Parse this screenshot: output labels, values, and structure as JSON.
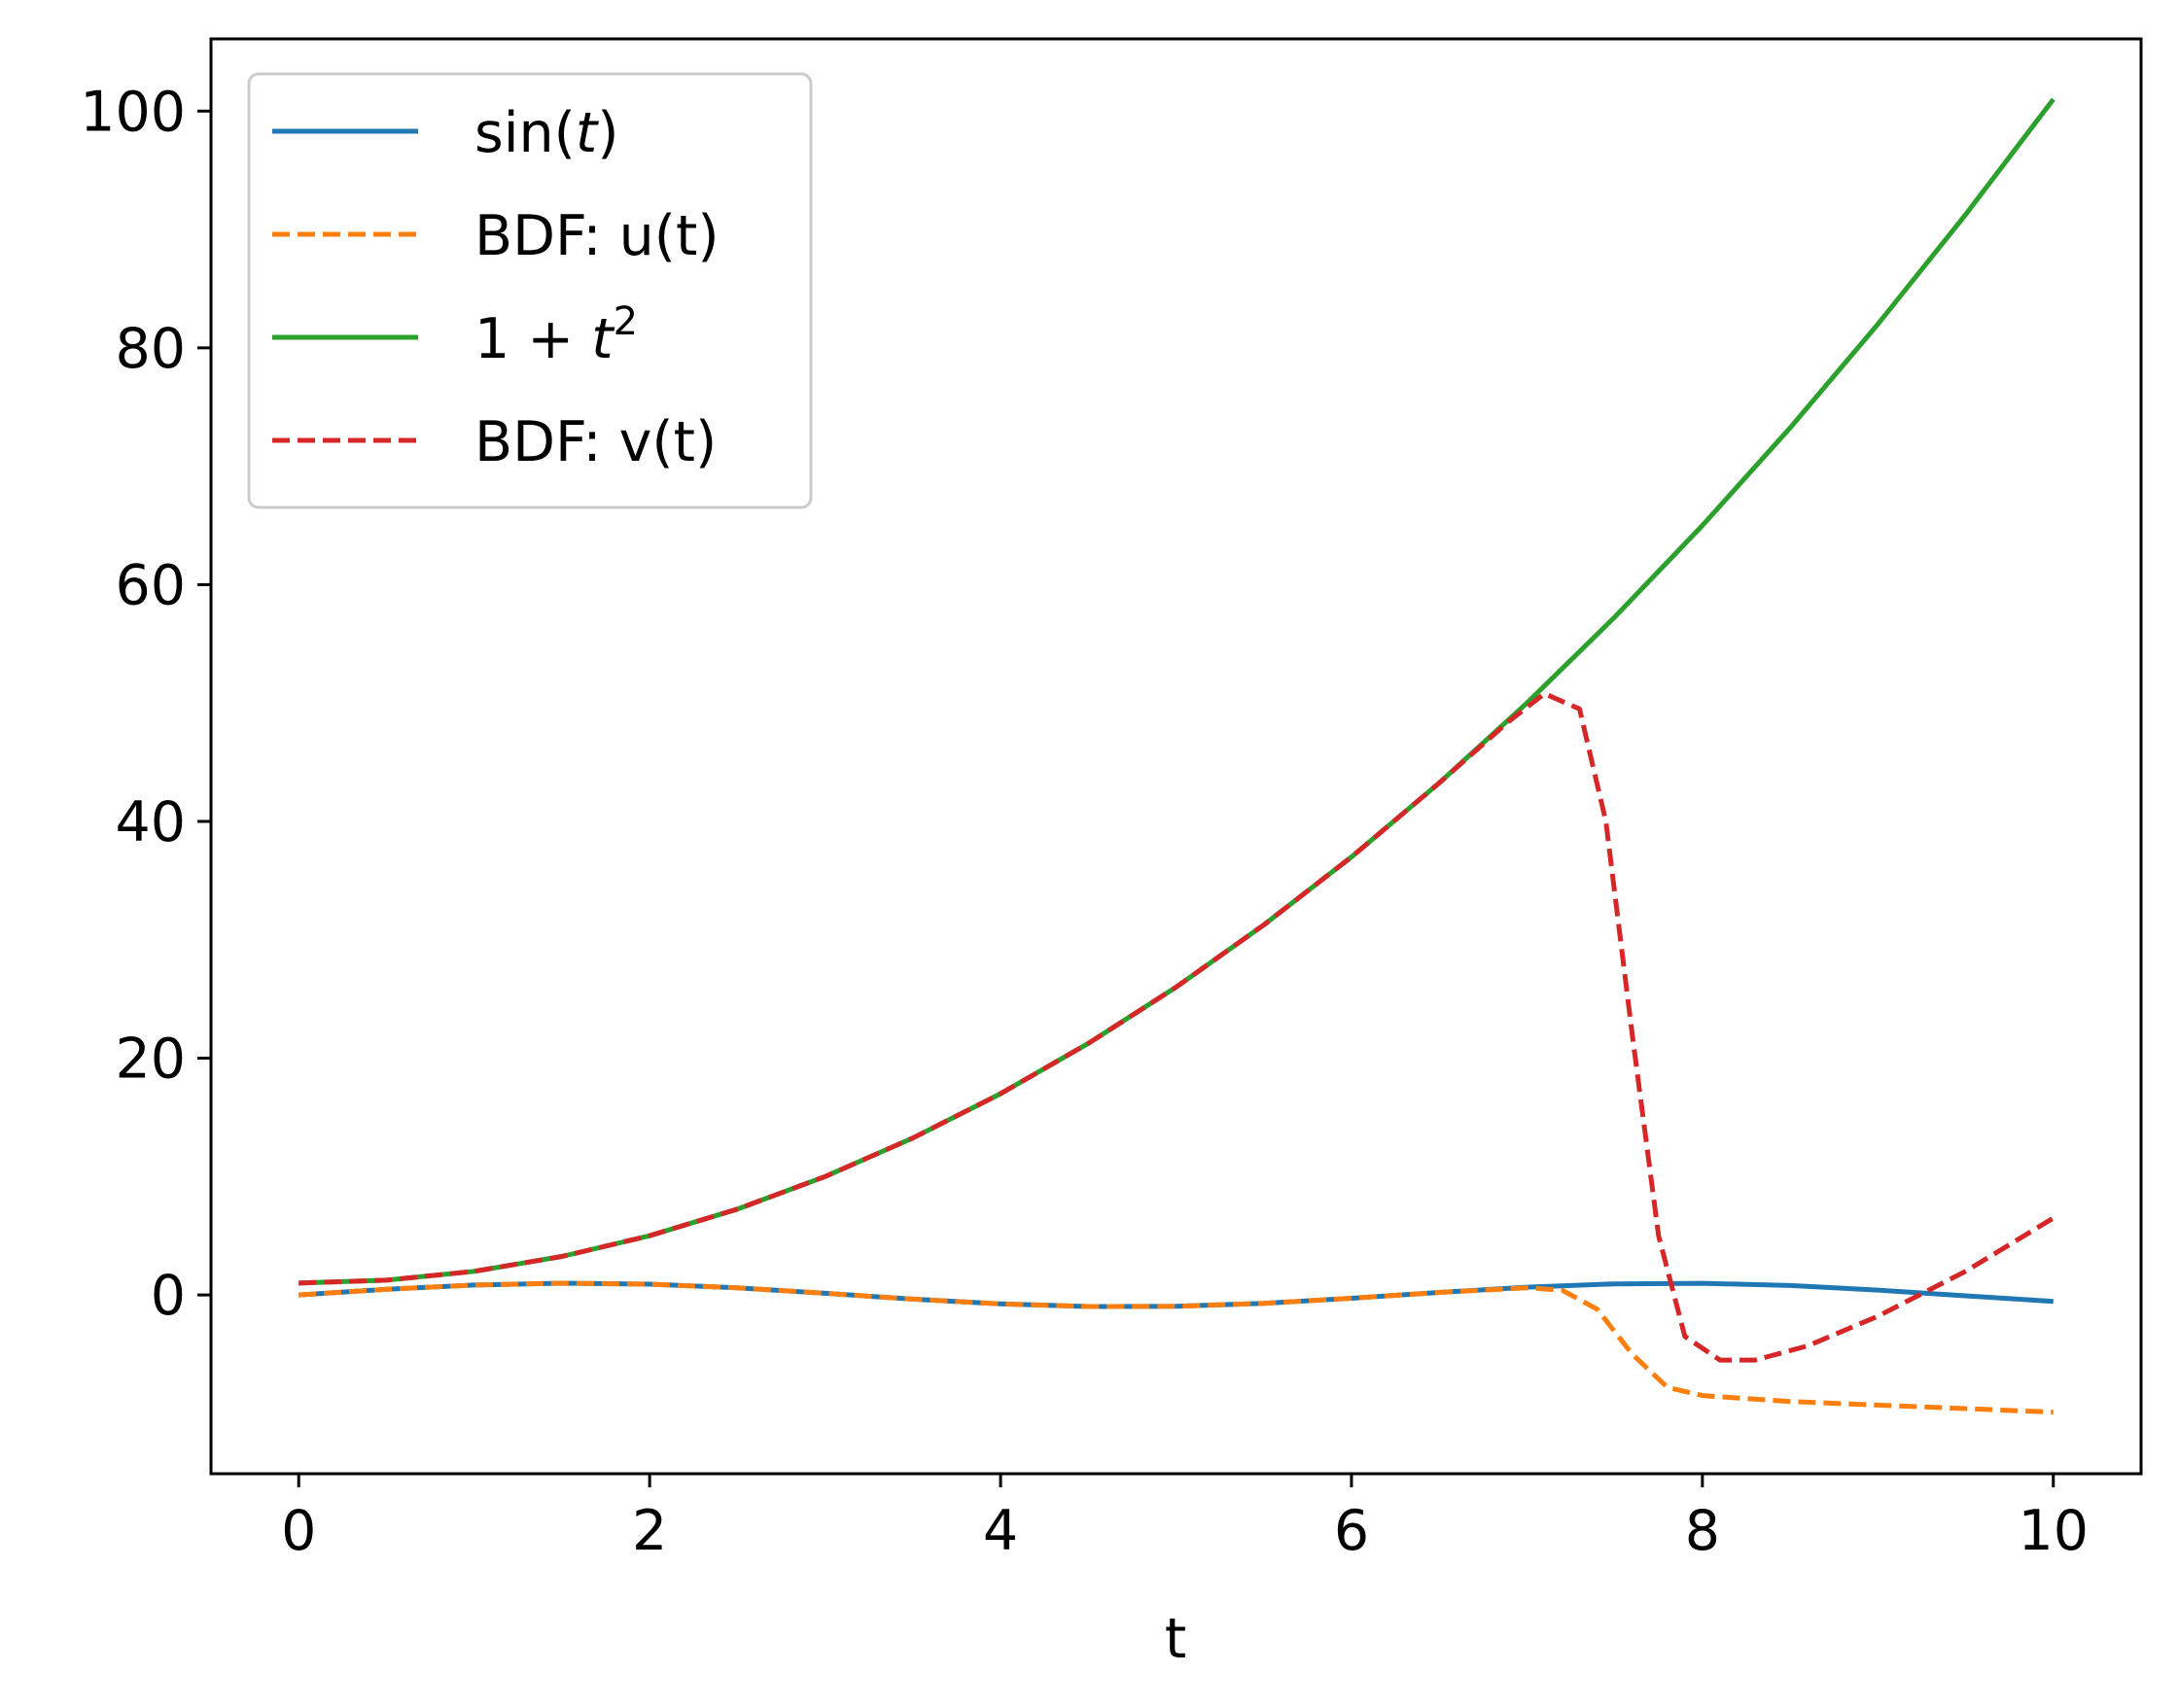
{
  "chart_data": {
    "type": "line",
    "title": "",
    "xlabel": "t",
    "ylabel": "",
    "xlim": [
      -0.5,
      10.5
    ],
    "ylim": [
      -15.1,
      106.1
    ],
    "xticks": [
      0,
      2,
      4,
      6,
      8,
      10
    ],
    "xtick_labels": [
      "0",
      "2",
      "4",
      "6",
      "8",
      "10"
    ],
    "yticks": [
      0,
      20,
      40,
      60,
      80,
      100
    ],
    "ytick_labels": [
      "0",
      "20",
      "40",
      "60",
      "80",
      "100"
    ],
    "grid": false,
    "legend_position": "top-left",
    "series": [
      {
        "name": "sin(t)",
        "legend_main": "sin(",
        "legend_italic": "t",
        "legend_sup": "",
        "legend_tail": ")",
        "color": "#1f77b4",
        "style": "solid",
        "x": [
          0,
          0.5,
          1,
          1.5,
          2,
          2.5,
          3,
          3.5,
          4,
          4.5,
          5,
          5.5,
          6,
          6.5,
          7,
          7.5,
          8,
          8.5,
          9,
          9.5,
          10
        ],
        "y": [
          0,
          0.479,
          0.841,
          0.997,
          0.909,
          0.598,
          0.141,
          -0.351,
          -0.757,
          -0.978,
          -0.959,
          -0.706,
          -0.279,
          0.215,
          0.657,
          0.938,
          0.989,
          0.798,
          0.412,
          -0.075,
          -0.544
        ]
      },
      {
        "name": "BDF: u(t)",
        "legend_main": "BDF: u(t)",
        "legend_italic": "",
        "legend_sup": "",
        "legend_tail": "",
        "color": "#ff7f0e",
        "style": "dashed",
        "x": [
          0,
          0.5,
          1,
          1.5,
          2,
          2.5,
          3,
          3.5,
          4,
          4.5,
          5,
          5.5,
          6,
          6.5,
          7,
          7.2,
          7.4,
          7.6,
          7.8,
          8,
          8.5,
          9,
          9.5,
          10
        ],
        "y": [
          0,
          0.479,
          0.841,
          0.997,
          0.909,
          0.598,
          0.141,
          -0.351,
          -0.757,
          -0.978,
          -0.959,
          -0.706,
          -0.279,
          0.215,
          0.6,
          0.4,
          -1.2,
          -5,
          -7.8,
          -8.5,
          -9,
          -9.3,
          -9.6,
          -9.9
        ]
      },
      {
        "name": "1 + t^2",
        "legend_main": "1 + ",
        "legend_italic": "t",
        "legend_sup": "2",
        "legend_tail": "",
        "color": "#2ca02c",
        "style": "solid",
        "x": [
          0,
          0.5,
          1,
          1.5,
          2,
          2.5,
          3,
          3.5,
          4,
          4.5,
          5,
          5.5,
          6,
          6.5,
          7,
          7.5,
          8,
          8.5,
          9,
          9.5,
          10
        ],
        "y": [
          1,
          1.25,
          2,
          3.25,
          5,
          7.25,
          10,
          13.25,
          17,
          21.25,
          26,
          31.25,
          37,
          43.25,
          50,
          57.25,
          65,
          73.25,
          82,
          91.25,
          101
        ]
      },
      {
        "name": "BDF: v(t)",
        "legend_main": "BDF: v(t)",
        "legend_italic": "",
        "legend_sup": "",
        "legend_tail": "",
        "color": "#d62728",
        "style": "dashed",
        "x": [
          0,
          0.5,
          1,
          1.5,
          2,
          2.5,
          3,
          3.5,
          4,
          4.5,
          5,
          5.5,
          6,
          6.5,
          6.9,
          7.1,
          7.3,
          7.45,
          7.6,
          7.75,
          7.9,
          8.1,
          8.3,
          8.6,
          9,
          9.5,
          10
        ],
        "y": [
          1,
          1.25,
          2,
          3.25,
          5,
          7.25,
          10,
          13.25,
          17,
          21.25,
          26,
          31.25,
          37,
          43.25,
          48.5,
          50.8,
          49.5,
          40,
          22,
          5,
          -3.5,
          -5.5,
          -5.5,
          -4.3,
          -1.8,
          2,
          6.5
        ]
      }
    ]
  }
}
